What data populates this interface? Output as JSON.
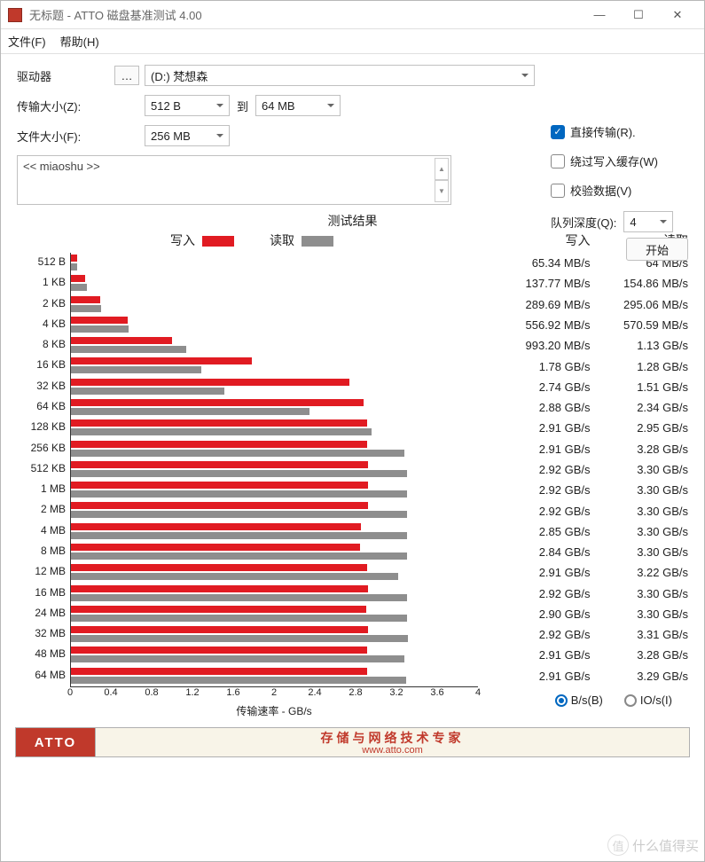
{
  "window": {
    "title": "无标题 - ATTO 磁盘基准测试 4.00"
  },
  "menu": {
    "file": "文件(F)",
    "help": "帮助(H)"
  },
  "form": {
    "drive_label": "驱动器",
    "drive_value": "(D:) 梵想森",
    "transfer_label": "传输大小(Z):",
    "transfer_from": "512 B",
    "to": "到",
    "transfer_to": "64 MB",
    "filesize_label": "文件大小(F):",
    "filesize_value": "256 MB"
  },
  "options": {
    "direct": {
      "label": "直接传输(R).",
      "checked": true
    },
    "bypass": {
      "label": "绕过写入缓存(W)",
      "checked": false
    },
    "verify": {
      "label": "校验数据(V)",
      "checked": false
    },
    "queue_label": "队列深度(Q):",
    "queue_value": "4",
    "start": "开始"
  },
  "desc": {
    "text": "<< miaoshu >>"
  },
  "results": {
    "title": "测试结果",
    "legend_write": "写入",
    "legend_read": "读取",
    "xlabel": "传输速率 - GB/s",
    "write_col": "写入",
    "read_col": "读取",
    "unit_bs": "B/s(B)",
    "unit_ios": "IO/s(I)"
  },
  "chart": {
    "write_color": "#e11b22",
    "read_color": "#8e8e8e",
    "xmax": 4.0,
    "xticks": [
      "0",
      "0.4",
      "0.8",
      "1.2",
      "1.6",
      "2",
      "2.4",
      "2.8",
      "3.2",
      "3.6",
      "4"
    ],
    "rows": [
      {
        "label": "512 B",
        "w": 0.0653,
        "r": 0.064,
        "wtxt": "65.34 MB/s",
        "rtxt": "64 MB/s"
      },
      {
        "label": "1 KB",
        "w": 0.1378,
        "r": 0.1549,
        "wtxt": "137.77 MB/s",
        "rtxt": "154.86 MB/s"
      },
      {
        "label": "2 KB",
        "w": 0.2897,
        "r": 0.2951,
        "wtxt": "289.69 MB/s",
        "rtxt": "295.06 MB/s"
      },
      {
        "label": "4 KB",
        "w": 0.5569,
        "r": 0.5706,
        "wtxt": "556.92 MB/s",
        "rtxt": "570.59 MB/s"
      },
      {
        "label": "8 KB",
        "w": 0.9932,
        "r": 1.13,
        "wtxt": "993.20 MB/s",
        "rtxt": "1.13 GB/s"
      },
      {
        "label": "16 KB",
        "w": 1.78,
        "r": 1.28,
        "wtxt": "1.78 GB/s",
        "rtxt": "1.28 GB/s"
      },
      {
        "label": "32 KB",
        "w": 2.74,
        "r": 1.51,
        "wtxt": "2.74 GB/s",
        "rtxt": "1.51 GB/s"
      },
      {
        "label": "64 KB",
        "w": 2.88,
        "r": 2.34,
        "wtxt": "2.88 GB/s",
        "rtxt": "2.34 GB/s"
      },
      {
        "label": "128 KB",
        "w": 2.91,
        "r": 2.95,
        "wtxt": "2.91 GB/s",
        "rtxt": "2.95 GB/s"
      },
      {
        "label": "256 KB",
        "w": 2.91,
        "r": 3.28,
        "wtxt": "2.91 GB/s",
        "rtxt": "3.28 GB/s"
      },
      {
        "label": "512 KB",
        "w": 2.92,
        "r": 3.3,
        "wtxt": "2.92 GB/s",
        "rtxt": "3.30 GB/s"
      },
      {
        "label": "1 MB",
        "w": 2.92,
        "r": 3.3,
        "wtxt": "2.92 GB/s",
        "rtxt": "3.30 GB/s"
      },
      {
        "label": "2 MB",
        "w": 2.92,
        "r": 3.3,
        "wtxt": "2.92 GB/s",
        "rtxt": "3.30 GB/s"
      },
      {
        "label": "4 MB",
        "w": 2.85,
        "r": 3.3,
        "wtxt": "2.85 GB/s",
        "rtxt": "3.30 GB/s"
      },
      {
        "label": "8 MB",
        "w": 2.84,
        "r": 3.3,
        "wtxt": "2.84 GB/s",
        "rtxt": "3.30 GB/s"
      },
      {
        "label": "12 MB",
        "w": 2.91,
        "r": 3.22,
        "wtxt": "2.91 GB/s",
        "rtxt": "3.22 GB/s"
      },
      {
        "label": "16 MB",
        "w": 2.92,
        "r": 3.3,
        "wtxt": "2.92 GB/s",
        "rtxt": "3.30 GB/s"
      },
      {
        "label": "24 MB",
        "w": 2.9,
        "r": 3.3,
        "wtxt": "2.90 GB/s",
        "rtxt": "3.30 GB/s"
      },
      {
        "label": "32 MB",
        "w": 2.92,
        "r": 3.31,
        "wtxt": "2.92 GB/s",
        "rtxt": "3.31 GB/s"
      },
      {
        "label": "48 MB",
        "w": 2.91,
        "r": 3.28,
        "wtxt": "2.91 GB/s",
        "rtxt": "3.28 GB/s"
      },
      {
        "label": "64 MB",
        "w": 2.91,
        "r": 3.29,
        "wtxt": "2.91 GB/s",
        "rtxt": "3.29 GB/s"
      }
    ]
  },
  "footer": {
    "logo": "ATTO",
    "text": "存储与网络技术专家",
    "url": "www.atto.com"
  },
  "watermark": {
    "text": "什么值得买",
    "badge": "值"
  }
}
